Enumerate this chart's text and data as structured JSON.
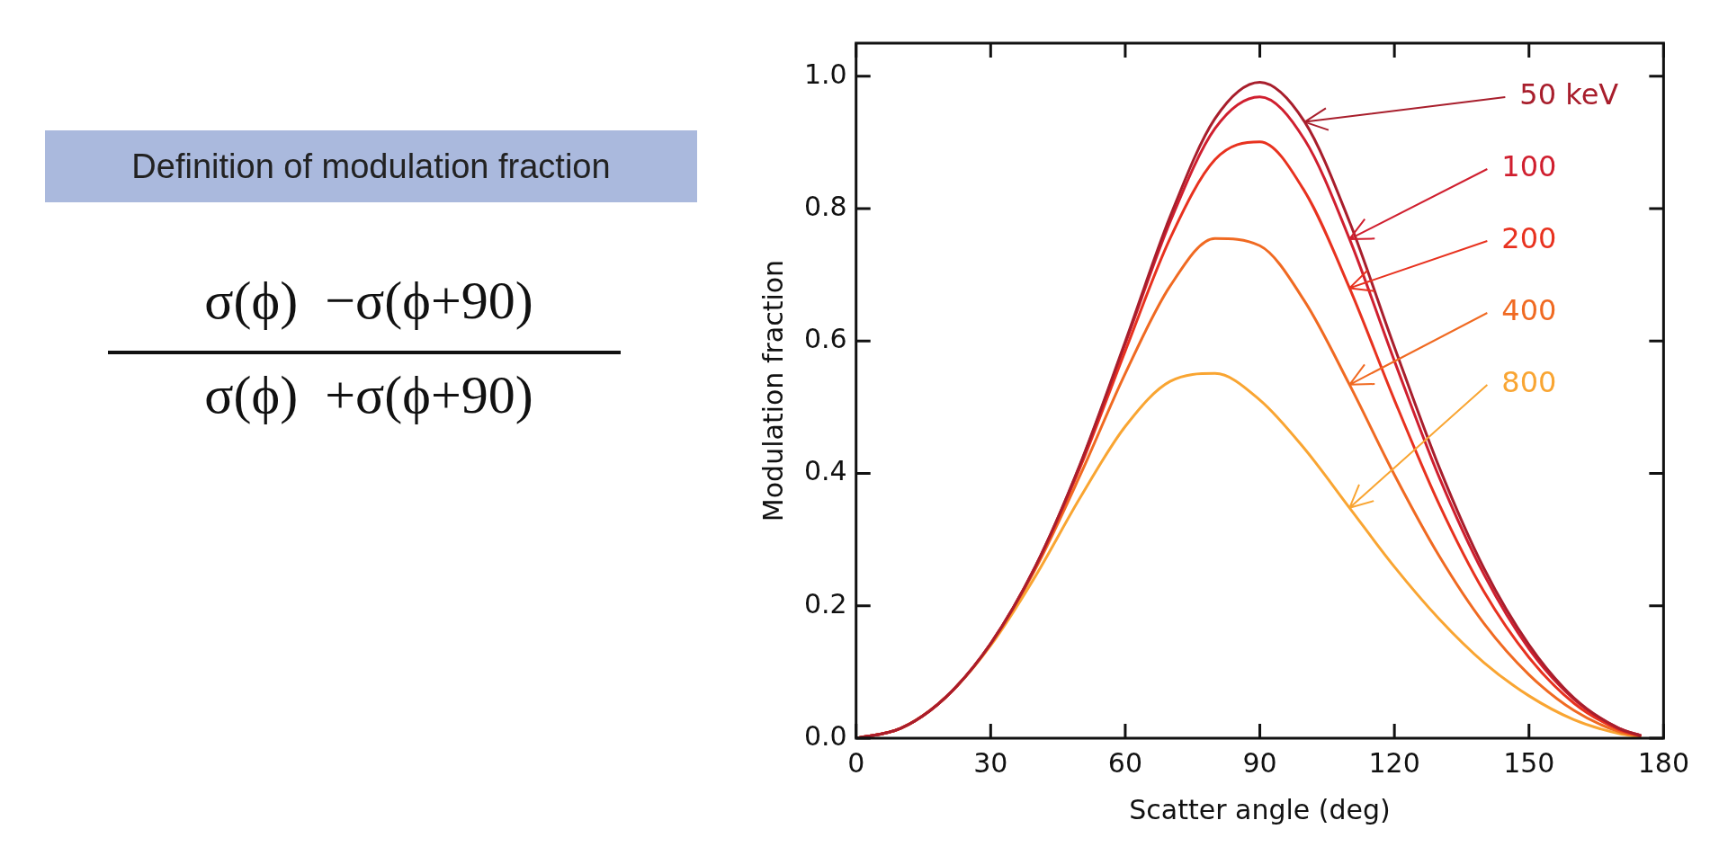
{
  "chart_data": {
    "type": "line",
    "xlabel": "Scatter angle (deg)",
    "ylabel": "Modulation fraction",
    "x": [
      0,
      10,
      20,
      30,
      40,
      50,
      60,
      70,
      80,
      90,
      100,
      110,
      120,
      130,
      140,
      150,
      160,
      170,
      175
    ],
    "series": [
      {
        "name": "50 keV",
        "color": "#a81e2c",
        "values": [
          0,
          0.015,
          0.062,
          0.143,
          0.26,
          0.415,
          0.599,
          0.788,
          0.936,
          0.991,
          0.931,
          0.78,
          0.591,
          0.409,
          0.256,
          0.141,
          0.061,
          0.015,
          0.004
        ]
      },
      {
        "name": "100",
        "color": "#d01f2f",
        "values": [
          0,
          0.015,
          0.062,
          0.143,
          0.26,
          0.414,
          0.596,
          0.78,
          0.921,
          0.969,
          0.904,
          0.754,
          0.57,
          0.394,
          0.247,
          0.135,
          0.059,
          0.015,
          0.004
        ]
      },
      {
        "name": "200",
        "color": "#e8321f",
        "values": [
          0,
          0.015,
          0.062,
          0.143,
          0.259,
          0.41,
          0.585,
          0.755,
          0.874,
          0.901,
          0.826,
          0.68,
          0.511,
          0.353,
          0.221,
          0.122,
          0.053,
          0.013,
          0.003
        ]
      },
      {
        "name": "400",
        "color": "#f06a22",
        "values": [
          0,
          0.015,
          0.062,
          0.142,
          0.256,
          0.398,
          0.551,
          0.683,
          0.755,
          0.744,
          0.66,
          0.534,
          0.398,
          0.275,
          0.173,
          0.096,
          0.042,
          0.01,
          0.003
        ]
      },
      {
        "name": "800",
        "color": "#f9a532",
        "values": [
          0,
          0.015,
          0.062,
          0.14,
          0.245,
          0.364,
          0.471,
          0.539,
          0.551,
          0.511,
          0.437,
          0.348,
          0.259,
          0.18,
          0.114,
          0.064,
          0.028,
          0.007,
          0.002
        ]
      }
    ],
    "xlim": [
      0,
      180
    ],
    "xticks": [
      0,
      30,
      60,
      90,
      120,
      150,
      180
    ],
    "ylim": [
      0,
      1.05
    ],
    "yticks": [
      {
        "value": 0,
        "label": "0.0"
      },
      {
        "value": 0.2,
        "label": "0.2"
      },
      {
        "value": 0.4,
        "label": "0.4"
      },
      {
        "value": 0.6,
        "label": "0.6"
      },
      {
        "value": 0.8,
        "label": "0.8"
      },
      {
        "value": 1,
        "label": "1.0"
      }
    ],
    "grid": false,
    "legend": false,
    "marker": "none",
    "line_style": "solid",
    "annotations": [
      "Definition of modulation fraction",
      "σ(ϕ)  −σ(ϕ+90)",
      "σ(ϕ)  +σ(ϕ+90)"
    ]
  }
}
